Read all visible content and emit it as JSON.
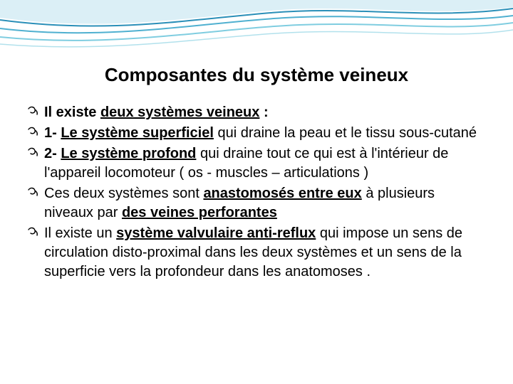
{
  "title": "Composantes du système veineux",
  "wave": {
    "stroke1": "#2a8fb8",
    "stroke2": "#4fb0d0",
    "stroke3": "#7fcde0",
    "fill_light": "#b8e0ee"
  },
  "bullets": [
    {
      "segments": [
        {
          "text": "Il existe ",
          "bold": true
        },
        {
          "text": "deux systèmes veineux",
          "bold": true,
          "underline": true
        },
        {
          "text": " :",
          "bold": true
        }
      ]
    },
    {
      "segments": [
        {
          "text": "1- ",
          "bold": true
        },
        {
          "text": "Le système superficiel",
          "bold": true,
          "underline": true
        },
        {
          "text": " qui draine la peau et le tissu sous-cutané"
        }
      ]
    },
    {
      "segments": [
        {
          "text": "2- ",
          "bold": true
        },
        {
          "text": "Le système profond",
          "bold": true,
          "underline": true
        },
        {
          "text": " qui draine tout ce qui est à l'intérieur de l'appareil locomoteur ( os - muscles – articulations )"
        }
      ]
    },
    {
      "segments": [
        {
          "text": "Ces deux systèmes sont "
        },
        {
          "text": "anastomosés entre eux",
          "bold": true,
          "underline": true
        },
        {
          "text": " à plusieurs niveaux par "
        },
        {
          "text": "des veines perforantes",
          "bold": true,
          "underline": true
        }
      ]
    },
    {
      "segments": [
        {
          "text": "Il existe un "
        },
        {
          "text": "système valvulaire anti-reflux",
          "bold": true,
          "underline": true
        },
        {
          "text": " qui impose un sens de circulation disto-proximal dans les deux systèmes et un sens de la superficie vers la profondeur dans les anatomoses ."
        }
      ]
    }
  ]
}
